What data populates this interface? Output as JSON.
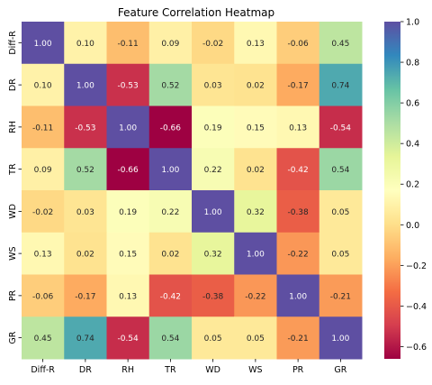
{
  "chart_data": {
    "type": "heatmap",
    "title": "Feature Correlation Heatmap",
    "xlabel": "",
    "ylabel": "",
    "x_categories": [
      "Diff-R",
      "DR",
      "RH",
      "TR",
      "WD",
      "WS",
      "PR",
      "GR"
    ],
    "y_categories": [
      "Diff-R",
      "DR",
      "RH",
      "TR",
      "WD",
      "WS",
      "PR",
      "GR"
    ],
    "values": [
      [
        1.0,
        0.1,
        -0.11,
        0.09,
        -0.02,
        0.13,
        -0.06,
        0.45
      ],
      [
        0.1,
        1.0,
        -0.53,
        0.52,
        0.03,
        0.02,
        -0.17,
        0.74
      ],
      [
        -0.11,
        -0.53,
        1.0,
        -0.66,
        0.19,
        0.15,
        0.13,
        -0.54
      ],
      [
        0.09,
        0.52,
        -0.66,
        1.0,
        0.22,
        0.02,
        -0.42,
        0.54
      ],
      [
        -0.02,
        0.03,
        0.19,
        0.22,
        1.0,
        0.32,
        -0.38,
        0.05
      ],
      [
        0.13,
        0.02,
        0.15,
        0.02,
        0.32,
        1.0,
        -0.22,
        0.05
      ],
      [
        -0.06,
        -0.17,
        0.13,
        -0.42,
        -0.38,
        -0.22,
        1.0,
        -0.21
      ],
      [
        0.45,
        0.74,
        -0.54,
        0.54,
        0.05,
        0.05,
        -0.21,
        1.0
      ]
    ],
    "value_format": "0.00",
    "colormap": "Spectral",
    "color_range": [
      -0.66,
      1.0
    ],
    "colorbar_ticks": [
      1.0,
      0.8,
      0.6,
      0.4,
      0.2,
      0.0,
      -0.2,
      -0.4,
      -0.6
    ],
    "colorbar_tick_labels": [
      "1.0",
      "0.8",
      "0.6",
      "0.4",
      "0.2",
      "0.0",
      "−0.2",
      "−0.4",
      "−0.6"
    ]
  }
}
